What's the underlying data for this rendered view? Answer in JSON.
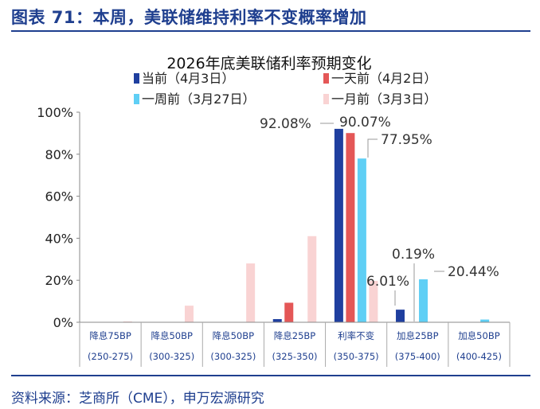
{
  "figure": {
    "heading": "图表 71：本周，美联储维持利率不变概率增加",
    "source": "资料来源：芝商所（CME），申万宏源研究"
  },
  "chart_data": {
    "type": "bar",
    "title": "2026年底美联储利率预期变化",
    "categories": [
      "降息75BP",
      "降息50BP",
      "降息50BP",
      "降息25BP",
      "利率不变",
      "加息25BP",
      "加息50BP"
    ],
    "category_ranges": [
      "(250-275)",
      "(300-325)",
      "(300-325)",
      "(325-350)",
      "(350-375)",
      "(375-400)",
      "(400-425)"
    ],
    "series": [
      {
        "name": "当前（4月3日）",
        "color": "#1f3f9f",
        "values": [
          0.0,
          0.0,
          0.0,
          1.5,
          92.08,
          6.01,
          0.0
        ]
      },
      {
        "name": "一天前（4月2日）",
        "color": "#e45757",
        "values": [
          0.0,
          0.0,
          0.0,
          9.3,
          90.07,
          0.19,
          0.0
        ]
      },
      {
        "name": "一周前（3月27日）",
        "color": "#5fcff5",
        "values": [
          0.0,
          0.0,
          0.0,
          0.0,
          77.95,
          20.44,
          1.3
        ]
      },
      {
        "name": "一月前（3月3日）",
        "color": "#f9d3d3",
        "values": [
          0.4,
          7.9,
          28.0,
          41.0,
          19.7,
          0.0,
          0.0
        ]
      }
    ],
    "ylim": [
      0,
      100
    ],
    "yticks": [
      "0%",
      "20%",
      "40%",
      "60%",
      "80%",
      "100%"
    ],
    "annotations": [
      "92.08%",
      "90.07%",
      "77.95%",
      "0.19%",
      "6.01%",
      "20.44%"
    ],
    "legend_position": "top"
  }
}
